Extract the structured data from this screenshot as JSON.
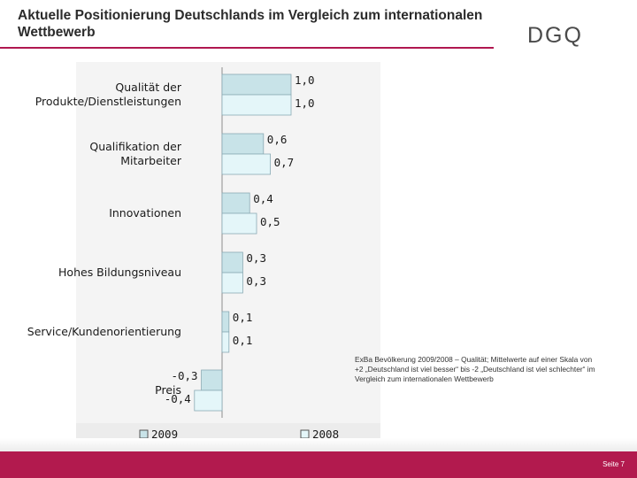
{
  "slide": {
    "title": "Aktuelle Positionierung Deutschlands  im Vergleich zum internationalen Wettbewerb",
    "logo_text": "DGQ",
    "note": "ExBa Bevölkerung 2009/2008 – Qualität; Mittelwerte auf einer Skala von +2 „Deutschland ist viel besser“ bis -2 „Deutschland ist viel schlechter“ im Vergleich zum internationalen Wettbewerb",
    "page_label": "Seite 7"
  },
  "colors": {
    "accent": "#b21a4e",
    "bar_2009": "#c8e3e8",
    "bar_2008": "#e4f6f9",
    "bar_stroke": "#8aaab4"
  },
  "chart_data": {
    "type": "bar",
    "orientation": "horizontal",
    "categories": [
      "Qualität der Produkte/Dienstleistungen",
      "Qualifikation der Mitarbeiter",
      "Innovationen",
      "Hohes Bildungsniveau",
      "Service/Kundenorientierung",
      "Preis"
    ],
    "category_lines": [
      [
        "Qualität der",
        "Produkte/Dienstleistungen"
      ],
      [
        "Qualifikation der",
        "Mitarbeiter"
      ],
      [
        "Innovationen"
      ],
      [
        "Hohes Bildungsniveau"
      ],
      [
        "Service/Kundenorientierung"
      ],
      [
        "Preis"
      ]
    ],
    "series": [
      {
        "name": "2009",
        "values": [
          1.0,
          0.6,
          0.4,
          0.3,
          0.1,
          -0.3
        ],
        "labels": [
          "1,0",
          "0,6",
          "0,4",
          "0,3",
          "0,1",
          "-0,3"
        ]
      },
      {
        "name": "2008",
        "values": [
          1.0,
          0.7,
          0.5,
          0.3,
          0.1,
          -0.4
        ],
        "labels": [
          "1,0",
          "0,7",
          "0,5",
          "0,3",
          "0,1",
          "-0,4"
        ]
      }
    ],
    "xlim": [
      -0.4,
      1.1
    ],
    "legend": [
      "2009",
      "2008"
    ],
    "legend_position": "bottom"
  }
}
